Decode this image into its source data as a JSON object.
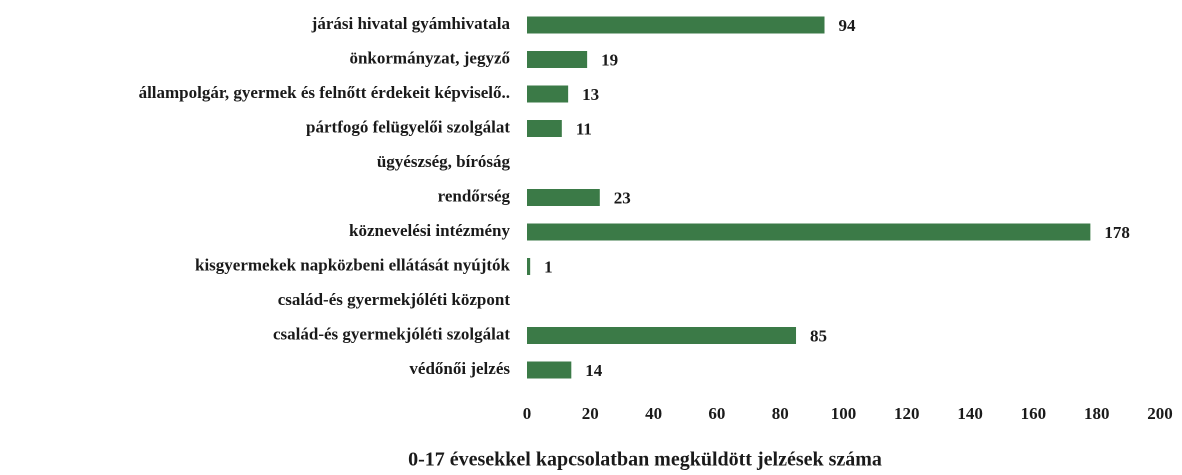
{
  "chart_data": {
    "type": "bar",
    "orientation": "horizontal",
    "x_label": "0-17 évesekkel kapcsolatban megküldött jelzések száma",
    "categories": [
      "járási hivatal gyámhivatala",
      "önkormányzat, jegyző",
      "állampolgár, gyermek és felnőtt érdekeit képviselő..",
      "pártfogó felügyelői szolgálat",
      "ügyészség, bíróság",
      "rendőrség",
      "köznevelési intézmény",
      "kisgyermekek napközbeni ellátását nyújtók",
      "család-és gyermekjóléti központ",
      "család-és gyermekjóléti szolgálat",
      "védőnői jelzés"
    ],
    "values": [
      94,
      19,
      13,
      11,
      null,
      23,
      178,
      1,
      null,
      85,
      14
    ],
    "color": "#3b7a47",
    "xlim": [
      0,
      200
    ],
    "xticks": [
      0,
      20,
      40,
      60,
      80,
      100,
      120,
      140,
      160,
      180,
      200
    ]
  }
}
